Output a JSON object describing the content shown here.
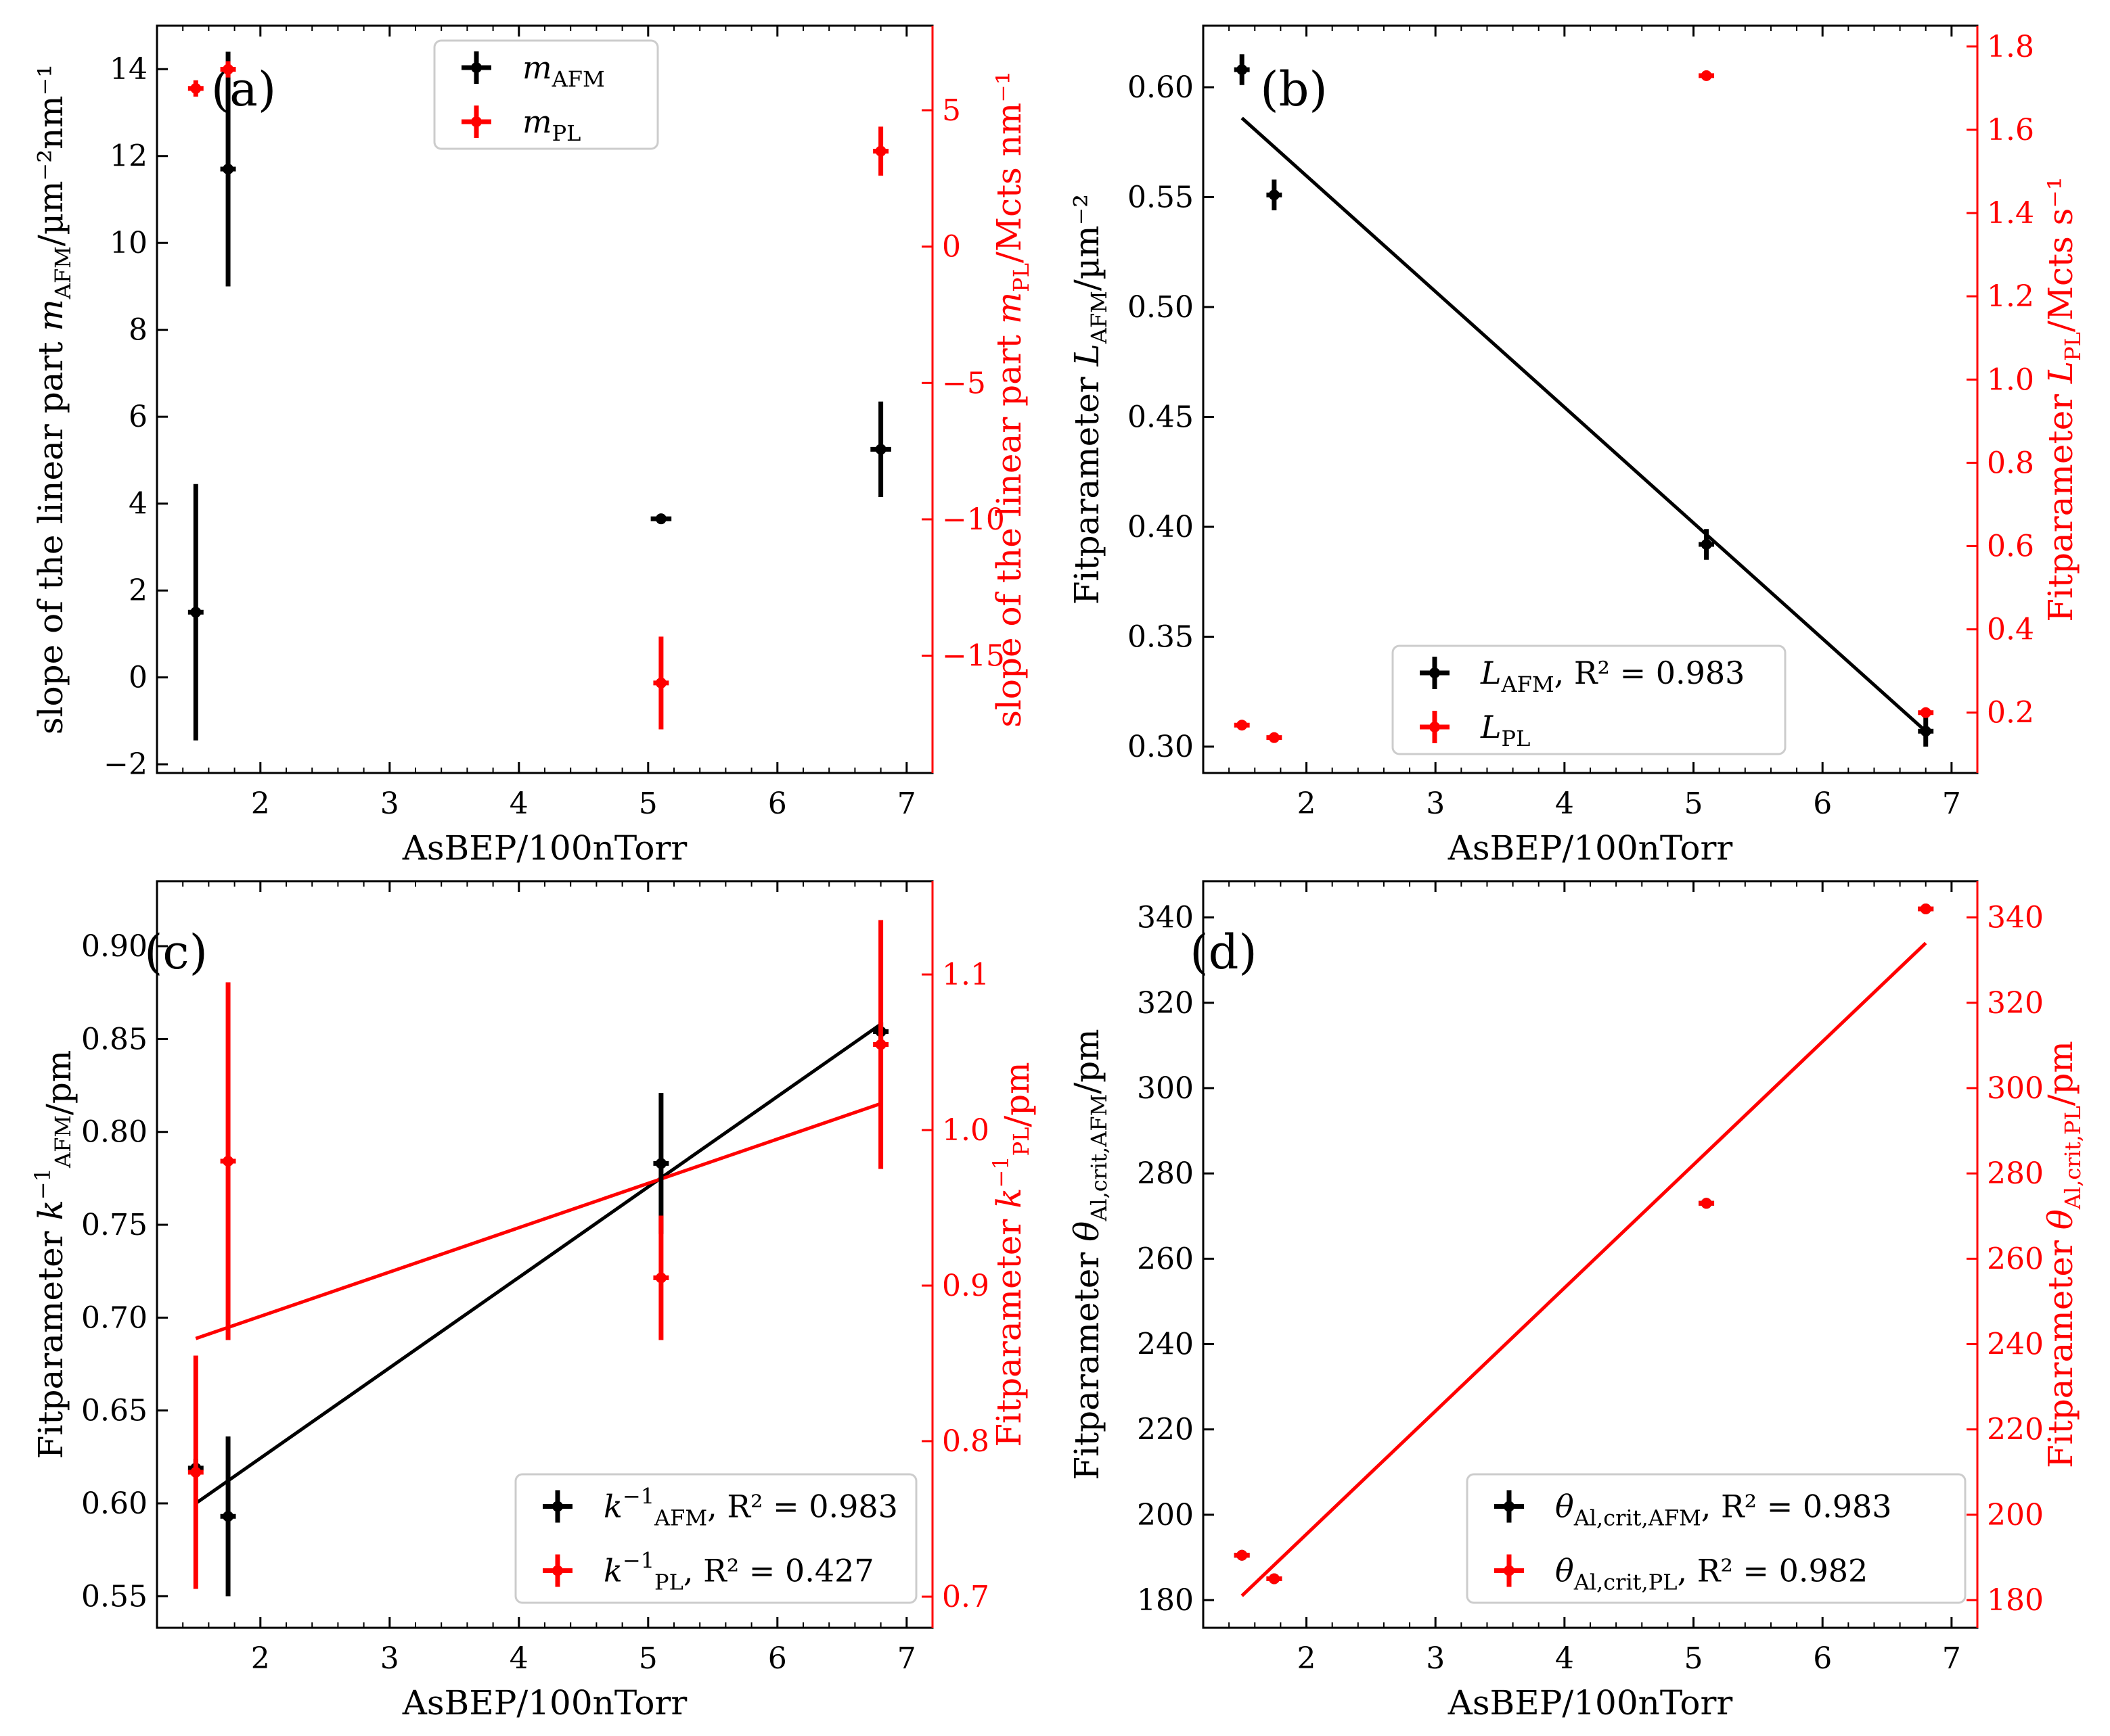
{
  "chart_data": [
    {
      "panel": "a",
      "panel_label": "(a)",
      "type": "scatter",
      "xlabel": "AsBEP/100nTorr",
      "xlim": [
        1.2,
        7.2
      ],
      "xticks": [
        2,
        3,
        4,
        5,
        6,
        7
      ],
      "ylabel_left": "slope of the linear part m_AFM/µm⁻²nm⁻¹",
      "ylim_left": [
        -2.2,
        15.0
      ],
      "yticks_left": [
        -2,
        0,
        2,
        4,
        6,
        8,
        10,
        12,
        14
      ],
      "ylabel_right": "slope of the linear part m_PL/Mcts nm⁻¹",
      "ylim_right": [
        -19.3,
        8.1
      ],
      "yticks_right": [
        -15,
        -10,
        -5,
        0,
        5
      ],
      "legend": "top-center",
      "series": [
        {
          "name": "m_AFM",
          "legend_main": "m",
          "legend_sub": "AFM",
          "axis": "left",
          "color": "#000000",
          "x": [
            1.5,
            1.75,
            5.1,
            6.8
          ],
          "y": [
            1.5,
            11.7,
            3.65,
            5.25
          ],
          "yerr": [
            2.95,
            2.7,
            0.1,
            1.1
          ],
          "xerr": [
            0.06,
            0.06,
            0.08,
            0.08
          ]
        },
        {
          "name": "m_PL",
          "legend_main": "m",
          "legend_sub": "PL",
          "axis": "right",
          "color": "#ff0000",
          "x": [
            1.5,
            1.75,
            5.1,
            6.8
          ],
          "y": [
            5.8,
            6.5,
            -16.0,
            3.5
          ],
          "yerr": [
            0.3,
            0.3,
            1.7,
            0.9
          ],
          "xerr": [
            0.06,
            0.06,
            0.06,
            0.06
          ]
        }
      ],
      "fits": []
    },
    {
      "panel": "b",
      "panel_label": "(b)",
      "type": "scatter",
      "xlabel": "AsBEP/100nTorr",
      "xlim": [
        1.2,
        7.2
      ],
      "xticks": [
        2,
        3,
        4,
        5,
        6,
        7
      ],
      "ylabel_left": "Fitparameter L_AFM/µm⁻²",
      "ylim_left": [
        0.288,
        0.628
      ],
      "yticks_left": [
        0.3,
        0.35,
        0.4,
        0.45,
        0.5,
        0.55,
        0.6
      ],
      "ylabel_right": "Fitparameter L_PL/Mcts s⁻¹",
      "ylim_right": [
        0.055,
        1.85
      ],
      "yticks_right": [
        0.2,
        0.4,
        0.6,
        0.8,
        1.0,
        1.2,
        1.4,
        1.6,
        1.8
      ],
      "legend": "bottom-right",
      "series": [
        {
          "name": "L_AFM",
          "legend_main": "L",
          "legend_sub": "AFM",
          "legend_tail": ", R² = 0.983",
          "axis": "left",
          "color": "#000000",
          "x": [
            1.5,
            1.75,
            5.1,
            6.8
          ],
          "y": [
            0.608,
            0.551,
            0.392,
            0.307
          ],
          "yerr": [
            0.007,
            0.007,
            0.007,
            0.007
          ],
          "xerr": [
            0.06,
            0.06,
            0.06,
            0.06
          ]
        },
        {
          "name": "L_PL",
          "legend_main": "L",
          "legend_sub": "PL",
          "legend_tail": "",
          "axis": "right",
          "color": "#ff0000",
          "x": [
            1.5,
            1.75,
            5.1,
            6.8
          ],
          "y": [
            0.17,
            0.14,
            1.73,
            0.2
          ],
          "yerr": [
            0.01,
            0.01,
            0.01,
            0.01
          ],
          "xerr": [
            0.06,
            0.06,
            0.06,
            0.06
          ]
        }
      ],
      "fits": [
        {
          "axis": "left",
          "color": "#000000",
          "x": [
            1.5,
            6.8
          ],
          "y": [
            0.586,
            0.307
          ]
        }
      ]
    },
    {
      "panel": "c",
      "panel_label": "(c)",
      "type": "scatter",
      "xlabel": "AsBEP/100nTorr",
      "xlim": [
        1.2,
        7.2
      ],
      "xticks": [
        2,
        3,
        4,
        5,
        6,
        7
      ],
      "ylabel_left": "Fitparameter k_AFM⁻¹/pm",
      "ylim_left": [
        0.533,
        0.935
      ],
      "yticks_left": [
        0.55,
        0.6,
        0.65,
        0.7,
        0.75,
        0.8,
        0.85,
        0.9
      ],
      "ylabel_right": "Fitparameter k_PL⁻¹/pm",
      "ylim_right": [
        0.68,
        1.16
      ],
      "yticks_right": [
        0.7,
        0.8,
        0.9,
        1.0,
        1.1
      ],
      "legend": "bottom-right",
      "series": [
        {
          "name": "k_AFM^-1",
          "legend_main": "k",
          "legend_sub": "AFM",
          "legend_sup": "−1",
          "legend_tail": ", R² = 0.983",
          "axis": "left",
          "color": "#000000",
          "x": [
            1.5,
            1.75,
            5.1,
            6.8
          ],
          "y": [
            0.619,
            0.593,
            0.783,
            0.854
          ],
          "yerr": [
            0.005,
            0.043,
            0.038,
            0.005
          ],
          "xerr": [
            0.06,
            0.06,
            0.06,
            0.06
          ]
        },
        {
          "name": "k_PL^-1",
          "legend_main": "k",
          "legend_sub": "PL",
          "legend_sup": "−1",
          "legend_tail": ", R² = 0.427",
          "axis": "right",
          "color": "#ff0000",
          "x": [
            1.5,
            1.75,
            5.1,
            6.8
          ],
          "y": [
            0.78,
            0.98,
            0.905,
            1.055
          ],
          "yerr": [
            0.075,
            0.115,
            0.04,
            0.08
          ],
          "xerr": [
            0.06,
            0.06,
            0.06,
            0.06
          ]
        }
      ],
      "fits": [
        {
          "axis": "left",
          "color": "#000000",
          "x": [
            1.5,
            6.8
          ],
          "y": [
            0.6,
            0.858
          ]
        },
        {
          "axis": "right",
          "color": "#ff0000",
          "x": [
            1.5,
            6.8
          ],
          "y": [
            0.866,
            1.017
          ]
        }
      ]
    },
    {
      "panel": "d",
      "panel_label": "(d)",
      "type": "scatter",
      "xlabel": "AsBEP/100nTorr",
      "xlim": [
        1.2,
        7.2
      ],
      "xticks": [
        2,
        3,
        4,
        5,
        6,
        7
      ],
      "ylabel_left": "Fitparameter θ_Al,crit,AFM/pm",
      "ylim_left": [
        173.5,
        348.5
      ],
      "yticks_left": [
        180,
        200,
        220,
        240,
        260,
        280,
        300,
        320,
        340
      ],
      "ylabel_right": "Fitparameter θ_Al,crit,PL/pm",
      "ylim_right": [
        173.5,
        348.5
      ],
      "yticks_right": [
        180,
        200,
        220,
        240,
        260,
        280,
        300,
        320,
        340
      ],
      "legend": "bottom-right",
      "series": [
        {
          "name": "θ_Al,crit,AFM",
          "legend_main": "θ",
          "legend_sub": "Al,crit,AFM",
          "legend_tail": ", R² = 0.983",
          "axis": "left",
          "color": "#000000",
          "x": [
            1.5,
            1.75,
            5.1,
            6.8
          ],
          "y": [
            190.5,
            185.0,
            273.0,
            342.0
          ],
          "yerr": [
            1.0,
            1.0,
            1.0,
            1.0
          ],
          "xerr": [
            0.06,
            0.06,
            0.06,
            0.06
          ]
        },
        {
          "name": "θ_Al,crit,PL",
          "legend_main": "θ",
          "legend_sub": "Al,crit,PL",
          "legend_tail": ", R² = 0.982",
          "axis": "right",
          "color": "#ff0000",
          "x": [
            1.5,
            1.75,
            5.1,
            6.8
          ],
          "y": [
            190.5,
            185.0,
            273.0,
            342.0
          ],
          "yerr": [
            1.0,
            1.0,
            1.0,
            1.0
          ],
          "xerr": [
            0.06,
            0.06,
            0.06,
            0.06
          ]
        }
      ],
      "fits": [
        {
          "axis": "right",
          "color": "#ff0000",
          "x": [
            1.5,
            6.8
          ],
          "y": [
            181.0,
            334.0
          ]
        }
      ]
    }
  ]
}
